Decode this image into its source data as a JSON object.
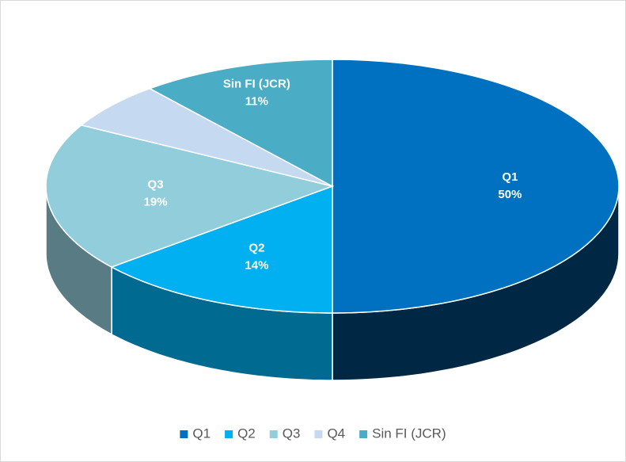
{
  "chart_data": {
    "type": "pie3d",
    "categories": [
      "Q1",
      "Q2",
      "Q3",
      "Q4",
      "Sin FI (JCR)"
    ],
    "values": [
      50,
      14,
      19,
      6,
      11
    ],
    "value_labels": [
      "50%",
      "14%",
      "19%",
      null,
      "11%"
    ],
    "colors": [
      "#0070c0",
      "#00b0f0",
      "#92cddc",
      "#c5d9f1",
      "#4bacc6"
    ],
    "legend": "bottom"
  }
}
